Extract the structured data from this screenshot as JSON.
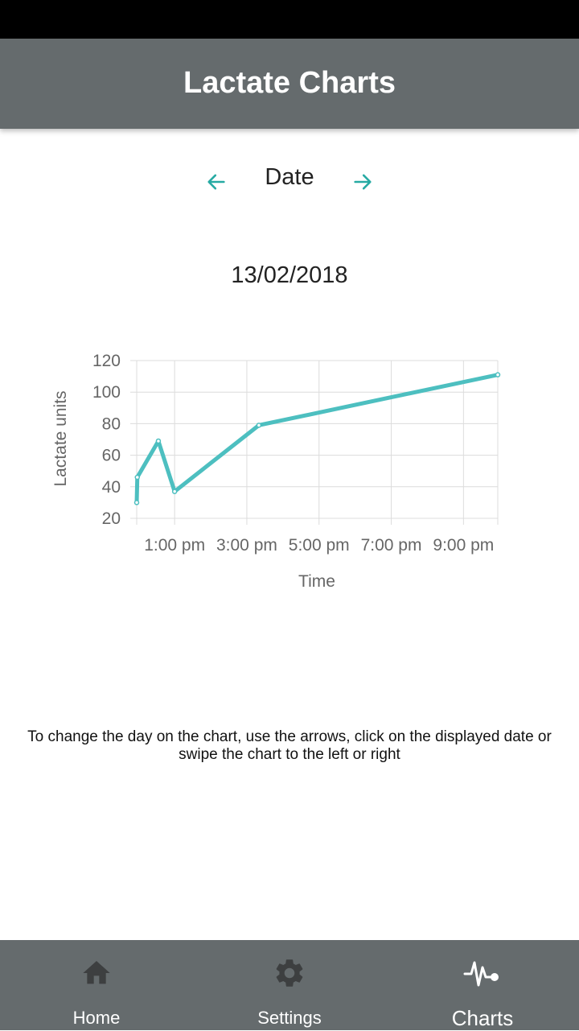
{
  "header": {
    "title": "Lactate Charts"
  },
  "date_nav": {
    "label": "Date",
    "prev_icon": "arrow-left-icon",
    "next_icon": "arrow-right-icon",
    "accent": "#26aaa3"
  },
  "current_date": "13/02/2018",
  "chart_data": {
    "type": "line",
    "xlabel": "Time",
    "ylabel": "Lactate units",
    "x_tick_labels": [
      "1:00 pm",
      "3:00 pm",
      "5:00 pm",
      "7:00 pm",
      "9:00 pm"
    ],
    "ylim": [
      20,
      120
    ],
    "y_ticks": [
      20,
      40,
      60,
      80,
      100,
      120
    ],
    "grid": true,
    "line_color": "#4dbfc0",
    "series": [
      {
        "x": [
          "11:57 am",
          "11:58 am",
          "12:33 pm",
          "1:00 pm",
          "3:20 pm",
          "9:57 pm"
        ],
        "values": [
          30,
          46,
          69,
          37,
          79,
          111
        ]
      }
    ]
  },
  "help_text": "To change the day on the chart, use the arrows, click on the displayed date or swipe the chart to the left or right",
  "bottom_nav": {
    "items": [
      {
        "label": "Home",
        "icon": "home-icon",
        "active": false
      },
      {
        "label": "Settings",
        "icon": "gear-icon",
        "active": false
      },
      {
        "label": "Charts",
        "icon": "pulse-icon",
        "active": true
      }
    ],
    "inactive_icon_color": "#3d3f40",
    "active_icon_color": "#ffffff"
  }
}
